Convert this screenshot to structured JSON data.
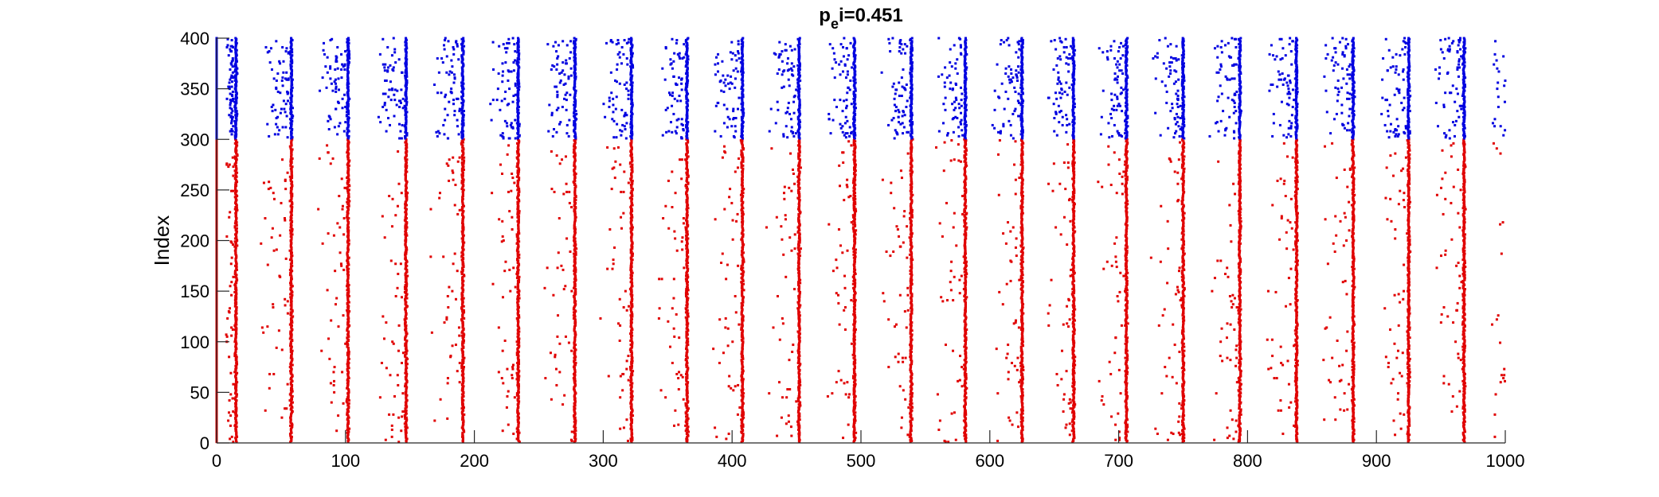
{
  "chart_data": {
    "type": "scatter",
    "title": "p_ei=0.451",
    "title_parts": {
      "main": "p",
      "subscript": "e",
      "rest": "i=0.451"
    },
    "xlabel": "",
    "ylabel": "Index",
    "xlim": [
      0,
      1000
    ],
    "ylim": [
      0,
      400
    ],
    "xticks": [
      "0",
      "100",
      "200",
      "300",
      "400",
      "500",
      "600",
      "700",
      "800",
      "900",
      "1000"
    ],
    "yticks": [
      "0",
      "50",
      "100",
      "150",
      "200",
      "250",
      "300",
      "350",
      "400"
    ],
    "grid": false,
    "legend": "none",
    "colors": {
      "excitatory": "#e00000",
      "inhibitory": "#0000e0"
    },
    "population_ranges": {
      "excitatory": [
        1,
        300
      ],
      "inhibitory": [
        301,
        400
      ]
    },
    "synchronous_burst_times": [
      15,
      58,
      102,
      147,
      191,
      234,
      278,
      322,
      365,
      408,
      452,
      495,
      539,
      581,
      625,
      665,
      706,
      750,
      794,
      838,
      882,
      925,
      968
    ],
    "initial_burst_time": 0,
    "scattered_inhibitory_spikes_per_gap": 60,
    "scattered_excitatory_spikes_per_gap": 45
  }
}
